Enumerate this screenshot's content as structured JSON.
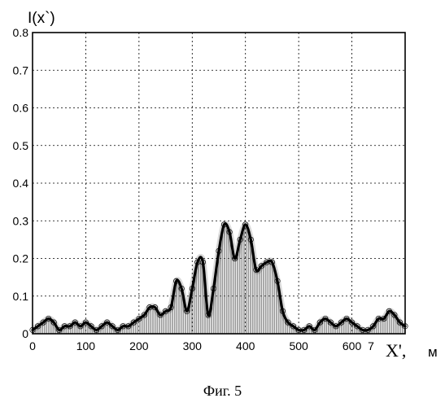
{
  "chart_data": {
    "type": "line",
    "ylabel": "I(x`)",
    "xlabel": "X',",
    "xunit": "м",
    "caption": "Фиг. 5",
    "xlim": [
      0,
      700
    ],
    "ylim": [
      0,
      0.8
    ],
    "xticks": [
      0,
      100,
      200,
      300,
      400,
      500,
      600
    ],
    "yticks": [
      0,
      0.1,
      0.2,
      0.3,
      0.4,
      0.5,
      0.6,
      0.7,
      0.8
    ],
    "last_xtick_label": "7",
    "grid": true,
    "series": [
      {
        "style": "solid-black-with-hatched-fill",
        "x": [
          0,
          10,
          20,
          30,
          40,
          50,
          60,
          70,
          80,
          90,
          100,
          110,
          120,
          130,
          140,
          150,
          160,
          170,
          180,
          190,
          200,
          210,
          220,
          230,
          240,
          250,
          260,
          270,
          280,
          290,
          300,
          310,
          320,
          330,
          340,
          350,
          360,
          370,
          380,
          390,
          400,
          410,
          420,
          430,
          440,
          450,
          460,
          470,
          480,
          490,
          500,
          510,
          520,
          530,
          540,
          550,
          560,
          570,
          580,
          590,
          600,
          610,
          620,
          630,
          640,
          650,
          660,
          670,
          680,
          690,
          700
        ],
        "y": [
          0.01,
          0.02,
          0.03,
          0.04,
          0.03,
          0.01,
          0.02,
          0.02,
          0.03,
          0.02,
          0.03,
          0.02,
          0.01,
          0.02,
          0.03,
          0.02,
          0.01,
          0.02,
          0.02,
          0.03,
          0.04,
          0.05,
          0.07,
          0.07,
          0.05,
          0.06,
          0.07,
          0.14,
          0.12,
          0.06,
          0.12,
          0.19,
          0.19,
          0.05,
          0.12,
          0.22,
          0.29,
          0.27,
          0.2,
          0.25,
          0.29,
          0.25,
          0.17,
          0.18,
          0.19,
          0.19,
          0.14,
          0.06,
          0.03,
          0.02,
          0.01,
          0.01,
          0.02,
          0.01,
          0.03,
          0.04,
          0.03,
          0.02,
          0.03,
          0.04,
          0.03,
          0.02,
          0.01,
          0.01,
          0.02,
          0.04,
          0.04,
          0.06,
          0.05,
          0.03,
          0.02
        ]
      }
    ]
  }
}
